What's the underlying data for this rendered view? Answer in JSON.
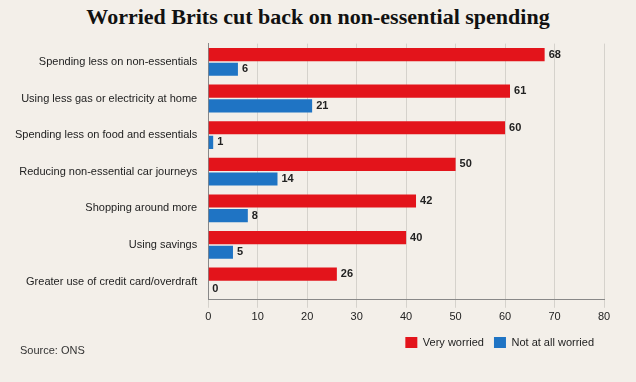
{
  "chart_data": {
    "type": "bar",
    "title": "Worried Brits cut back on non-essential spending",
    "orientation": "horizontal",
    "categories": [
      "Spending less on non-essentials",
      "Using less gas or electricity at home",
      "Spending less on food and essentials",
      "Reducing non-essential car journeys",
      "Shopping around more",
      "Using savings",
      "Greater use of credit card/overdraft"
    ],
    "series": [
      {
        "name": "Very worried",
        "color": "#e3141b",
        "values": [
          68,
          61,
          60,
          50,
          42,
          40,
          26
        ]
      },
      {
        "name": "Not at all worried",
        "color": "#1f74c4",
        "values": [
          6,
          21,
          1,
          14,
          8,
          5,
          0
        ]
      }
    ],
    "xlim": [
      0,
      80
    ],
    "xticks": [
      0,
      10,
      20,
      30,
      40,
      50,
      60,
      70,
      80
    ],
    "grid": true,
    "legend": "bottom",
    "data_labels": true,
    "source": "Source: ONS"
  }
}
